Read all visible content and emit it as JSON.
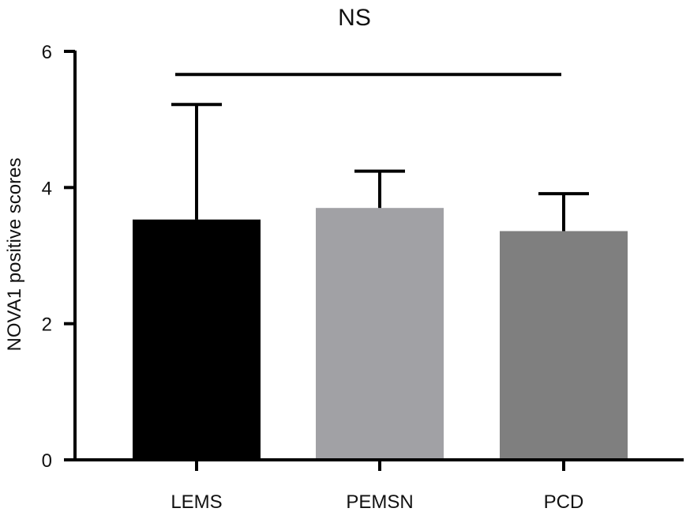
{
  "chart_data": {
    "type": "bar",
    "categories": [
      "LEMS",
      "PEMSN",
      "PCD"
    ],
    "values": [
      3.53,
      3.7,
      3.36
    ],
    "error_upper": [
      5.22,
      4.24,
      3.91
    ],
    "colors": [
      "#000000",
      "#a1a1a5",
      "#7f7f7f"
    ],
    "title": "",
    "xlabel": "",
    "ylabel": "NOVA1 positive scores",
    "ylim": [
      0,
      6
    ],
    "yticks": [
      0,
      2,
      4,
      6
    ],
    "ytick_labels": [
      "0",
      "2",
      "4",
      "6"
    ],
    "grid": false,
    "annotations": [
      {
        "text": "NS",
        "type": "significance-bracket",
        "from": "LEMS",
        "to": "PCD",
        "y": 5.66
      }
    ]
  }
}
